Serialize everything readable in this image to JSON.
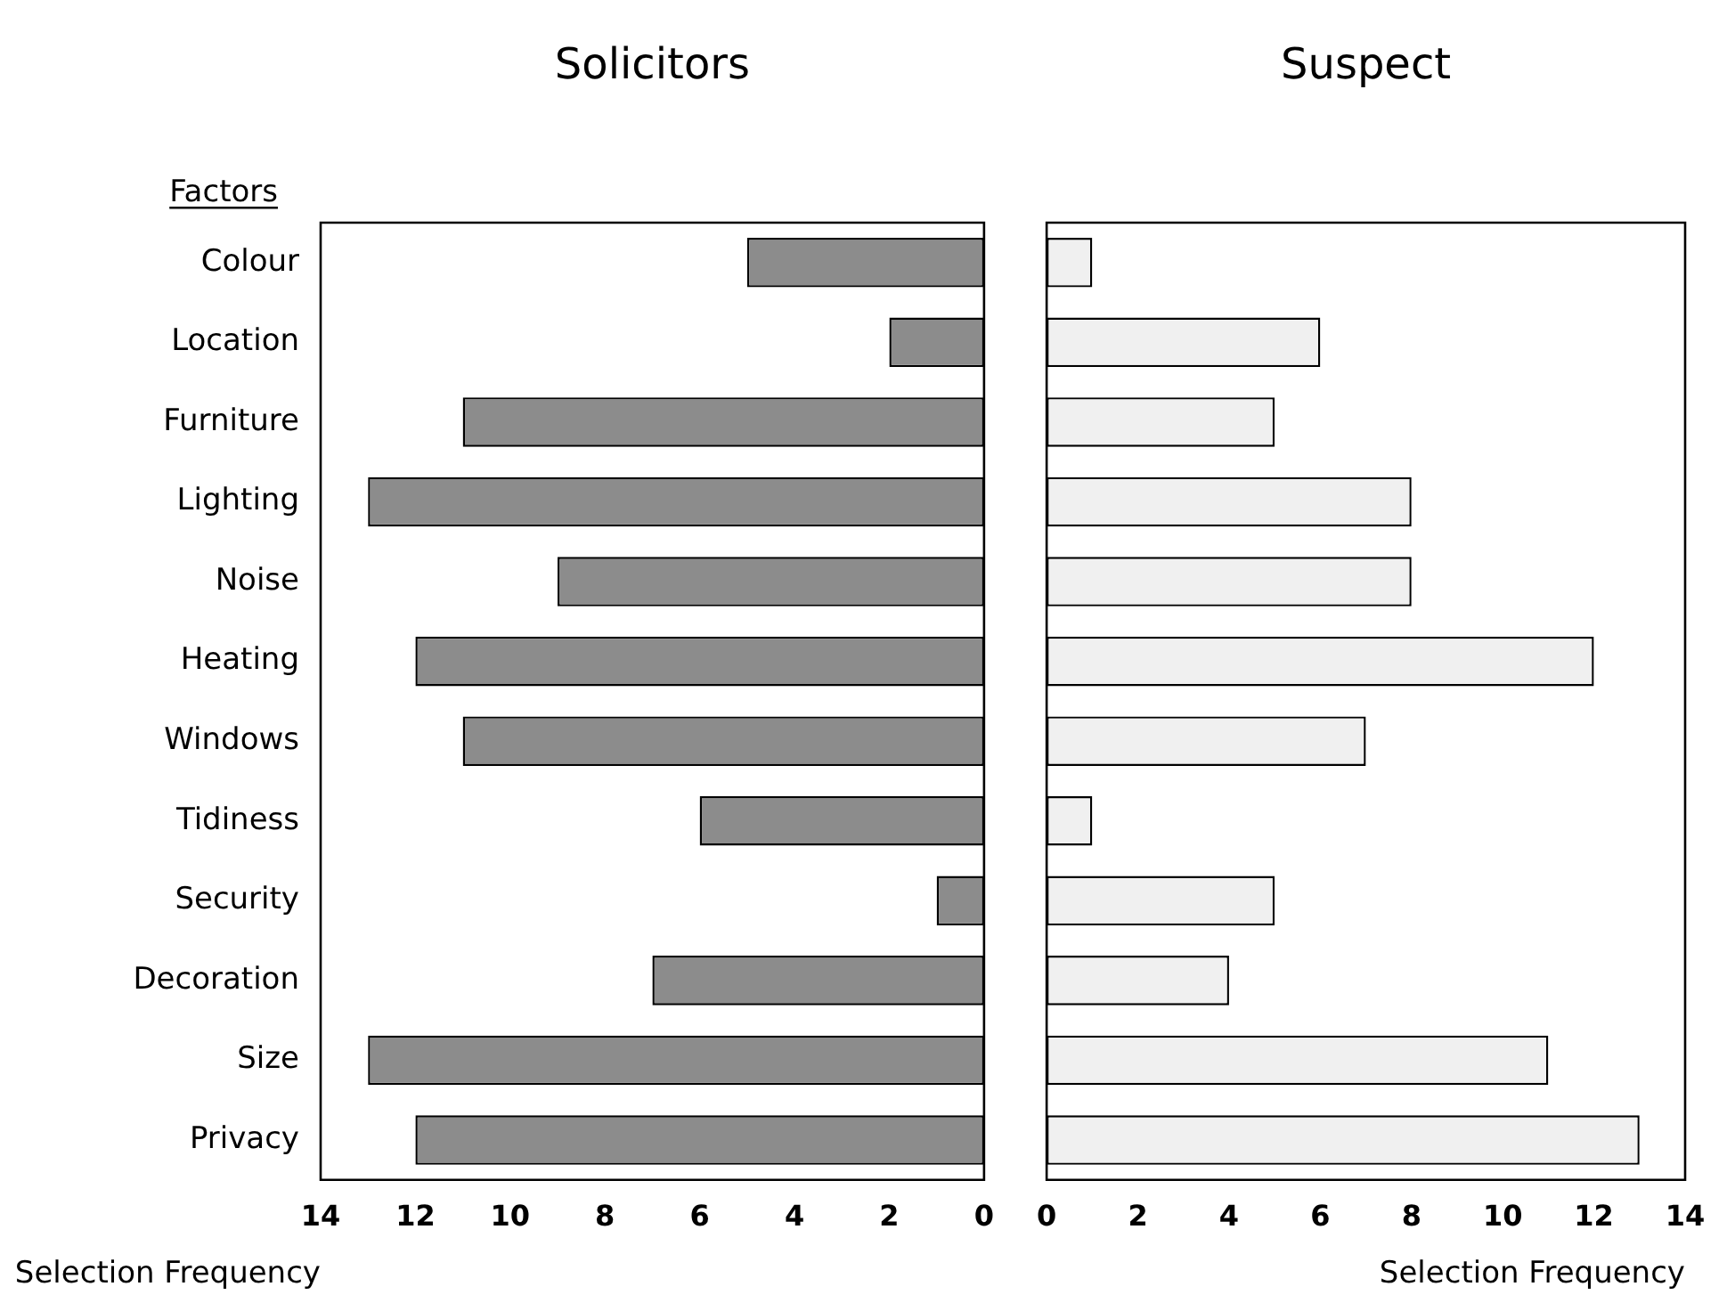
{
  "chart_data": [
    {
      "type": "bar",
      "orientation": "horizontal",
      "title": "Solicitors",
      "ylabel": "Factors",
      "xlabel": "Selection Frequency",
      "categories": [
        "Colour",
        "Location",
        "Furniture",
        "Lighting",
        "Noise",
        "Heating",
        "Windows",
        "Tidiness",
        "Security",
        "Decoration",
        "Size",
        "Privacy"
      ],
      "values": [
        5,
        2,
        11,
        13,
        9,
        12,
        11,
        6,
        1,
        7,
        13,
        12
      ],
      "color": "#8c8c8c",
      "xlim": [
        14,
        0
      ],
      "xticks": [
        14,
        12,
        10,
        8,
        6,
        4,
        2,
        0
      ],
      "grid": false,
      "legend": false
    },
    {
      "type": "bar",
      "orientation": "horizontal",
      "title": "Suspect",
      "xlabel": "Selection Frequency",
      "categories": [
        null,
        null,
        null,
        null,
        null,
        null,
        null,
        null,
        null,
        null,
        null,
        null
      ],
      "values": [
        1,
        6,
        5,
        8,
        8,
        12,
        7,
        1,
        5,
        4,
        11,
        13
      ],
      "color": "#f0f0f0",
      "xlim": [
        0,
        14
      ],
      "xticks": [
        0,
        2,
        4,
        6,
        8,
        10,
        12,
        14
      ],
      "grid": false,
      "legend": false,
      "tick_labels": "x"
    }
  ]
}
